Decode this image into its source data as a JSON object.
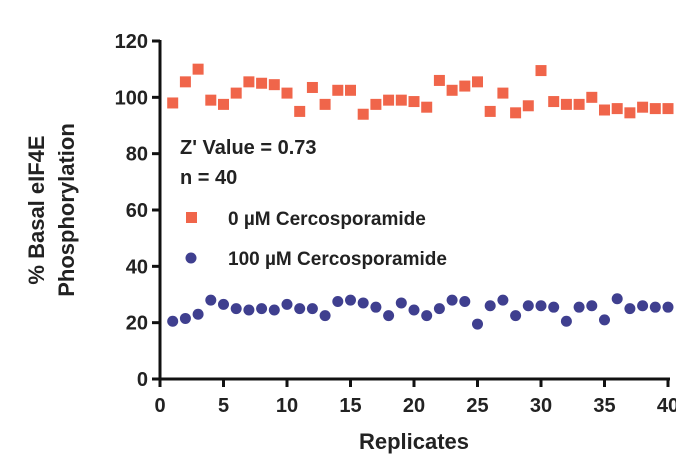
{
  "chart_data": {
    "type": "scatter",
    "title": "",
    "xlabel": "Replicates",
    "ylabel_lines": [
      "% Basal eIF4E",
      "Phosphorylation"
    ],
    "xlim": [
      0,
      40
    ],
    "ylim": [
      0,
      120
    ],
    "xticks": [
      0,
      5,
      10,
      15,
      20,
      25,
      30,
      35,
      40
    ],
    "yticks": [
      0,
      20,
      40,
      60,
      80,
      100,
      120
    ],
    "xtick_labels": [
      "0",
      "5",
      "10",
      "15",
      "20",
      "25",
      "30",
      "35",
      "40"
    ],
    "ytick_labels": [
      "0",
      "20",
      "40",
      "60",
      "80",
      "100",
      "120"
    ],
    "grid": false,
    "legend_position": "center-left",
    "annotations": [
      "Z' Value = 0.73",
      "n = 40"
    ],
    "series": [
      {
        "name": "0 µM Cercosporamide",
        "marker": "square",
        "color": "#f0654a",
        "x": [
          1,
          2,
          3,
          4,
          5,
          6,
          7,
          8,
          9,
          10,
          11,
          12,
          13,
          14,
          15,
          16,
          17,
          18,
          19,
          20,
          21,
          22,
          23,
          24,
          25,
          26,
          27,
          28,
          29,
          30,
          31,
          32,
          33,
          34,
          35,
          36,
          37,
          38,
          39,
          40
        ],
        "y": [
          98,
          105.5,
          110,
          99,
          97.5,
          101.5,
          105.5,
          105,
          104.5,
          101.5,
          95,
          103.5,
          97.5,
          102.5,
          102.5,
          94,
          97.5,
          99,
          99,
          98.5,
          96.5,
          106,
          102.5,
          104,
          105.5,
          95,
          101.5,
          94.5,
          97,
          109.5,
          98.5,
          97.5,
          97.5,
          100,
          95.5,
          96,
          94.5,
          96.5,
          96,
          96
        ]
      },
      {
        "name": "100 µM Cercosporamide",
        "marker": "circle",
        "color": "#3f3f8f",
        "x": [
          1,
          2,
          3,
          4,
          5,
          6,
          7,
          8,
          9,
          10,
          11,
          12,
          13,
          14,
          15,
          16,
          17,
          18,
          19,
          20,
          21,
          22,
          23,
          24,
          25,
          26,
          27,
          28,
          29,
          30,
          31,
          32,
          33,
          34,
          35,
          36,
          37,
          38,
          39,
          40
        ],
        "y": [
          20.5,
          21.5,
          23,
          28,
          26.5,
          25,
          24.5,
          25,
          24.5,
          26.5,
          25,
          25,
          22.5,
          27.5,
          28,
          27,
          25.5,
          22.5,
          27,
          24.5,
          22.5,
          25,
          28,
          27.5,
          19.5,
          26,
          28,
          22.5,
          26,
          26,
          25.5,
          20.5,
          25.5,
          26,
          21,
          28.5,
          25,
          26,
          25.5,
          25.5
        ]
      }
    ]
  }
}
